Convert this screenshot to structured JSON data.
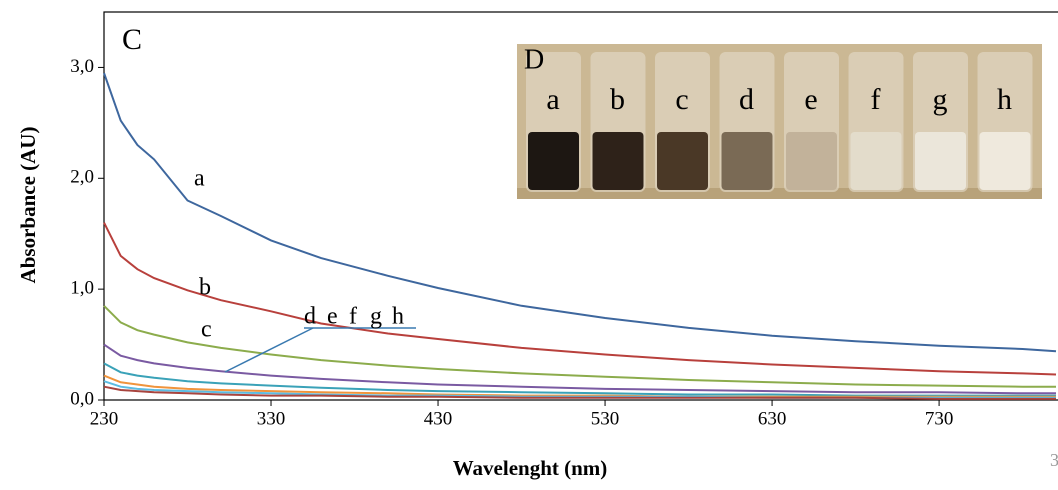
{
  "chart_data": {
    "type": "line",
    "panel_label": "C",
    "x_label": "Wavelenght (nm)",
    "y_label": "Absorbance (AU)",
    "x": [
      230,
      240,
      250,
      260,
      280,
      300,
      330,
      360,
      400,
      430,
      480,
      530,
      580,
      630,
      680,
      730,
      780,
      800
    ],
    "xlim": [
      230,
      800
    ],
    "xticks": [
      230,
      330,
      430,
      530,
      630,
      730
    ],
    "ylim": [
      0,
      3.5
    ],
    "yticks": [
      {
        "value": 0,
        "label": "0,0"
      },
      {
        "value": 1,
        "label": "1,0"
      },
      {
        "value": 2,
        "label": "2,0"
      },
      {
        "value": 3,
        "label": "3,0"
      }
    ],
    "series": [
      {
        "name": "a",
        "color": "#3e679e",
        "values": [
          2.95,
          2.52,
          2.3,
          2.17,
          1.8,
          1.66,
          1.44,
          1.28,
          1.12,
          1.01,
          0.85,
          0.74,
          0.65,
          0.58,
          0.53,
          0.49,
          0.46,
          0.44
        ]
      },
      {
        "name": "b",
        "color": "#b8403c",
        "values": [
          1.6,
          1.3,
          1.18,
          1.1,
          0.99,
          0.9,
          0.8,
          0.69,
          0.6,
          0.55,
          0.47,
          0.41,
          0.36,
          0.32,
          0.29,
          0.26,
          0.24,
          0.23
        ]
      },
      {
        "name": "c",
        "color": "#8cac4c",
        "values": [
          0.85,
          0.7,
          0.63,
          0.59,
          0.52,
          0.47,
          0.41,
          0.36,
          0.31,
          0.28,
          0.24,
          0.21,
          0.18,
          0.16,
          0.14,
          0.13,
          0.12,
          0.12
        ]
      },
      {
        "name": "d",
        "color": "#7a5aa2",
        "values": [
          0.5,
          0.4,
          0.36,
          0.33,
          0.29,
          0.26,
          0.22,
          0.19,
          0.16,
          0.14,
          0.12,
          0.1,
          0.09,
          0.08,
          0.07,
          0.07,
          0.06,
          0.06
        ]
      },
      {
        "name": "e",
        "color": "#3aa2b8",
        "values": [
          0.33,
          0.25,
          0.22,
          0.2,
          0.17,
          0.15,
          0.13,
          0.11,
          0.09,
          0.08,
          0.07,
          0.06,
          0.05,
          0.05,
          0.04,
          0.04,
          0.04,
          0.04
        ]
      },
      {
        "name": "f",
        "color": "#f0943c",
        "values": [
          0.22,
          0.16,
          0.14,
          0.12,
          0.1,
          0.09,
          0.08,
          0.07,
          0.06,
          0.05,
          0.04,
          0.04,
          0.03,
          0.03,
          0.03,
          0.03,
          0.03,
          0.03
        ]
      },
      {
        "name": "g",
        "color": "#5cbce2",
        "values": [
          0.17,
          0.12,
          0.1,
          0.09,
          0.08,
          0.07,
          0.06,
          0.05,
          0.04,
          0.04,
          0.03,
          0.03,
          0.03,
          0.02,
          0.02,
          0.02,
          0.02,
          0.02
        ]
      },
      {
        "name": "h",
        "color": "#a8443e",
        "values": [
          0.12,
          0.09,
          0.08,
          0.07,
          0.06,
          0.05,
          0.04,
          0.04,
          0.03,
          0.03,
          0.02,
          0.02,
          0.02,
          0.02,
          0.02,
          0.01,
          0.01,
          0.01
        ]
      }
    ],
    "inset": {
      "label": "D",
      "vials": [
        "a",
        "b",
        "c",
        "d",
        "e",
        "f",
        "g",
        "h"
      ]
    },
    "corner_mark": "3"
  }
}
